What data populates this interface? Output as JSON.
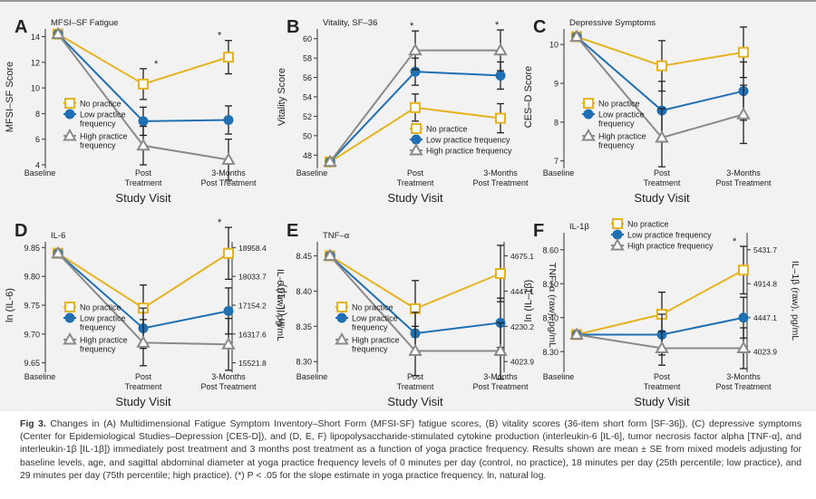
{
  "colors": {
    "no": "#e6b320",
    "low": "#1f6fb2",
    "high": "#8a8a8a",
    "err": "#222222"
  },
  "legend": [
    "No practice",
    "Low practice frequency",
    "High practice frequency"
  ],
  "x_categories": [
    "Baseline",
    "Post Treatment",
    "3-Months Post Treatment"
  ],
  "x_axis_title": "Study Visit",
  "chart_data": [
    {
      "panel": "A",
      "type": "line",
      "title": "MFSI–SF Fatigue",
      "ylabel": "MFSI–SF Score",
      "ylim": [
        4,
        14.6
      ],
      "yticks": [
        4,
        6,
        8,
        10,
        12,
        14
      ],
      "grid": false,
      "legend_position": "lower-left",
      "x": [
        "Baseline",
        "Post Treatment",
        "3-Months Post Treatment"
      ],
      "series": [
        {
          "name": "No practice",
          "values": [
            14.2,
            10.3,
            12.4
          ],
          "errors": [
            0,
            1.2,
            1.3
          ]
        },
        {
          "name": "Low practice frequency",
          "values": [
            14.2,
            7.4,
            7.5
          ],
          "errors": [
            0,
            1.1,
            1.1
          ]
        },
        {
          "name": "High practice frequency",
          "values": [
            14.2,
            5.5,
            4.4
          ],
          "errors": [
            0,
            1.5,
            1.6
          ]
        }
      ],
      "significance": [
        "*",
        "*"
      ]
    },
    {
      "panel": "B",
      "type": "line",
      "title": "Vitality, SF–36",
      "ylabel": "Vitality Score",
      "ylim": [
        47,
        61
      ],
      "yticks": [
        48,
        50,
        52,
        54,
        56,
        58,
        60
      ],
      "grid": false,
      "legend_position": "lower-right",
      "x": [
        "Baseline",
        "Post Treatment",
        "3-Months Post Treatment"
      ],
      "series": [
        {
          "name": "No practice",
          "values": [
            47.3,
            52.9,
            51.8
          ],
          "errors": [
            0,
            1.4,
            1.5
          ]
        },
        {
          "name": "Low practice frequency",
          "values": [
            47.3,
            56.6,
            56.2
          ],
          "errors": [
            0,
            1.4,
            1.4
          ]
        },
        {
          "name": "High practice frequency",
          "values": [
            47.3,
            58.8,
            58.8
          ],
          "errors": [
            0,
            2.0,
            2.1
          ]
        }
      ],
      "significance": [
        "*",
        "*"
      ]
    },
    {
      "panel": "C",
      "type": "line",
      "title": "Depressive Symptoms",
      "ylabel": "CES–D Score",
      "ylim": [
        6.9,
        10.4
      ],
      "yticks": [
        7,
        8,
        9,
        10
      ],
      "grid": false,
      "legend_position": "lower-left",
      "x": [
        "Baseline",
        "Post Treatment",
        "3-Months Post Treatment"
      ],
      "series": [
        {
          "name": "No practice",
          "values": [
            10.2,
            9.45,
            9.8
          ],
          "errors": [
            0,
            0.65,
            0.65
          ]
        },
        {
          "name": "Low practice frequency",
          "values": [
            10.2,
            8.3,
            8.8
          ],
          "errors": [
            0,
            0.75,
            0.75
          ]
        },
        {
          "name": "High practice frequency",
          "values": [
            10.2,
            7.6,
            8.2
          ],
          "errors": [
            0,
            0.75,
            0.75
          ]
        }
      ],
      "significance": []
    },
    {
      "panel": "D",
      "type": "line",
      "title": "IL-6",
      "ylabel": "ln (IL-6)",
      "ylabel_right": "IL-6 (raw), pg/mL",
      "ylim": [
        9.64,
        9.86
      ],
      "yticks": [
        9.65,
        9.7,
        9.75,
        9.8,
        9.85
      ],
      "grid": false,
      "legend_position": "lower-left",
      "yticks_right": [
        15521.8,
        16317.6,
        17154.2,
        18033.7,
        18958.4
      ],
      "x": [
        "Baseline",
        "Post Treatment",
        "3-Months Post Treatment"
      ],
      "series": [
        {
          "name": "No practice",
          "values": [
            9.84,
            9.745,
            9.84
          ],
          "errors": [
            0,
            0.04,
            0.045
          ]
        },
        {
          "name": "Low practice frequency",
          "values": [
            9.84,
            9.71,
            9.74
          ],
          "errors": [
            0,
            0.035,
            0.04
          ]
        },
        {
          "name": "High practice frequency",
          "values": [
            9.84,
            9.685,
            9.682
          ],
          "errors": [
            0,
            0.04,
            0.045
          ]
        }
      ],
      "significance": [
        "*"
      ]
    },
    {
      "panel": "E",
      "type": "line",
      "title": "TNF–α",
      "ylabel": "ln (IL–1β)",
      "ylabel_right": "TNF–α (raw), pg/mL",
      "ylim": [
        8.29,
        8.47
      ],
      "yticks": [
        8.3,
        8.35,
        8.4,
        8.45
      ],
      "grid": false,
      "legend_position": "lower-left",
      "yticks_right": [
        4023.9,
        4230.2,
        4447.1,
        4675.1
      ],
      "x": [
        "Baseline",
        "Post Treatment",
        "3-Months Post Treatment"
      ],
      "series": [
        {
          "name": "No practice",
          "values": [
            8.45,
            8.375,
            8.425
          ],
          "errors": [
            0,
            0.04,
            0.04
          ]
        },
        {
          "name": "Low practice frequency",
          "values": [
            8.45,
            8.34,
            8.355
          ],
          "errors": [
            0,
            0.03,
            0.035
          ]
        },
        {
          "name": "High practice frequency",
          "values": [
            8.45,
            8.315,
            8.315
          ],
          "errors": [
            0,
            0.035,
            0.04
          ]
        }
      ],
      "significance": []
    },
    {
      "panel": "F",
      "type": "line",
      "title": "IL-1β",
      "ylabel": "ln (IL–1β)",
      "ylabel_right": "IL–1β (raw), pg/mL",
      "ylim": [
        8.25,
        8.65
      ],
      "yticks": [
        8.3,
        8.4,
        8.5,
        8.6
      ],
      "grid": false,
      "legend_position": "top-left",
      "yticks_right": [
        4023.9,
        4447.1,
        4914.8,
        5431.7
      ],
      "x": [
        "Baseline",
        "Post Treatment",
        "3-Months Post Treatment"
      ],
      "series": [
        {
          "name": "No practice",
          "values": [
            8.35,
            8.41,
            8.54
          ],
          "errors": [
            0,
            0.065,
            0.07
          ]
        },
        {
          "name": "Low practice frequency",
          "values": [
            8.35,
            8.35,
            8.4
          ],
          "errors": [
            0,
            0.06,
            0.06
          ]
        },
        {
          "name": "High practice frequency",
          "values": [
            8.35,
            8.31,
            8.31
          ],
          "errors": [
            0,
            0.05,
            0.06
          ]
        }
      ],
      "significance": [
        "*"
      ]
    }
  ],
  "caption": {
    "label": "Fig 3.",
    "text": "Changes in (A) Multidimensional Fatigue Symptom Inventory–Short Form (MFSI-SF) fatigue scores, (B) vitality scores (36-item short form [SF-36]), (C) depressive symptoms (Center for Epidemiological Studies–Depression [CES-D]), and (D, E, F) lipopolysaccharide-stimulated cytokine production (interleukin-6 [IL-6], tumor necrosis factor alpha [TNF-α], and interleukin-1β [IL-1β]) immediately post treatment and 3 months post treatment as a function of yoga practice frequency. Results shown are mean ± SE from mixed models adjusting for baseline levels, age, and sagittal abdominal diameter at yoga practice frequency levels of 0 minutes per day (control, no practice), 18 minutes per day (25th percentile; low practice), and 29 minutes per day (75th percentile; high practice). (*) P < .05 for the slope estimate in yoga practice frequency. ln, natural log."
  }
}
